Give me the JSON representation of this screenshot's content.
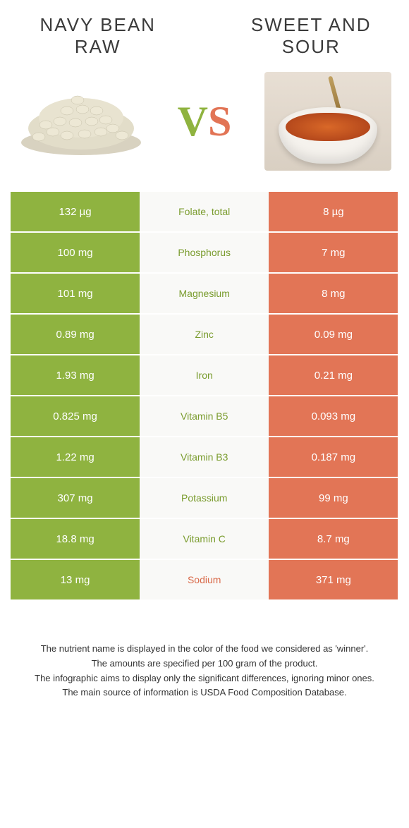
{
  "titles": {
    "left_line1": "NAVY BEAN",
    "left_line2": "RAW",
    "right_line1": "SWEET AND",
    "right_line2": "SOUR"
  },
  "vs": {
    "v": "V",
    "s": "S"
  },
  "colors": {
    "green_cell": "#8fb340",
    "orange_cell": "#e27556",
    "mid_cell": "#f9f9f7",
    "nutrient_green": "#7a9c2e",
    "nutrient_orange": "#d96a4a",
    "cell_text": "#ffffff"
  },
  "rows": [
    {
      "left": "132 µg",
      "label": "Folate, total",
      "right": "8 µg",
      "winner": "green"
    },
    {
      "left": "100 mg",
      "label": "Phosphorus",
      "right": "7 mg",
      "winner": "green"
    },
    {
      "left": "101 mg",
      "label": "Magnesium",
      "right": "8 mg",
      "winner": "green"
    },
    {
      "left": "0.89 mg",
      "label": "Zinc",
      "right": "0.09 mg",
      "winner": "green"
    },
    {
      "left": "1.93 mg",
      "label": "Iron",
      "right": "0.21 mg",
      "winner": "green"
    },
    {
      "left": "0.825 mg",
      "label": "Vitamin B5",
      "right": "0.093 mg",
      "winner": "green"
    },
    {
      "left": "1.22 mg",
      "label": "Vitamin B3",
      "right": "0.187 mg",
      "winner": "green"
    },
    {
      "left": "307 mg",
      "label": "Potassium",
      "right": "99 mg",
      "winner": "green"
    },
    {
      "left": "18.8 mg",
      "label": "Vitamin C",
      "right": "8.7 mg",
      "winner": "green"
    },
    {
      "left": "13 mg",
      "label": "Sodium",
      "right": "371 mg",
      "winner": "orange"
    }
  ],
  "footer": {
    "line1": "The nutrient name is displayed in the color of the food we considered as 'winner'.",
    "line2": "The amounts are specified per 100 gram of the product.",
    "line3": "The infographic aims to display only the significant differences, ignoring minor ones.",
    "line4": "The main source of information is USDA Food Composition Database."
  }
}
